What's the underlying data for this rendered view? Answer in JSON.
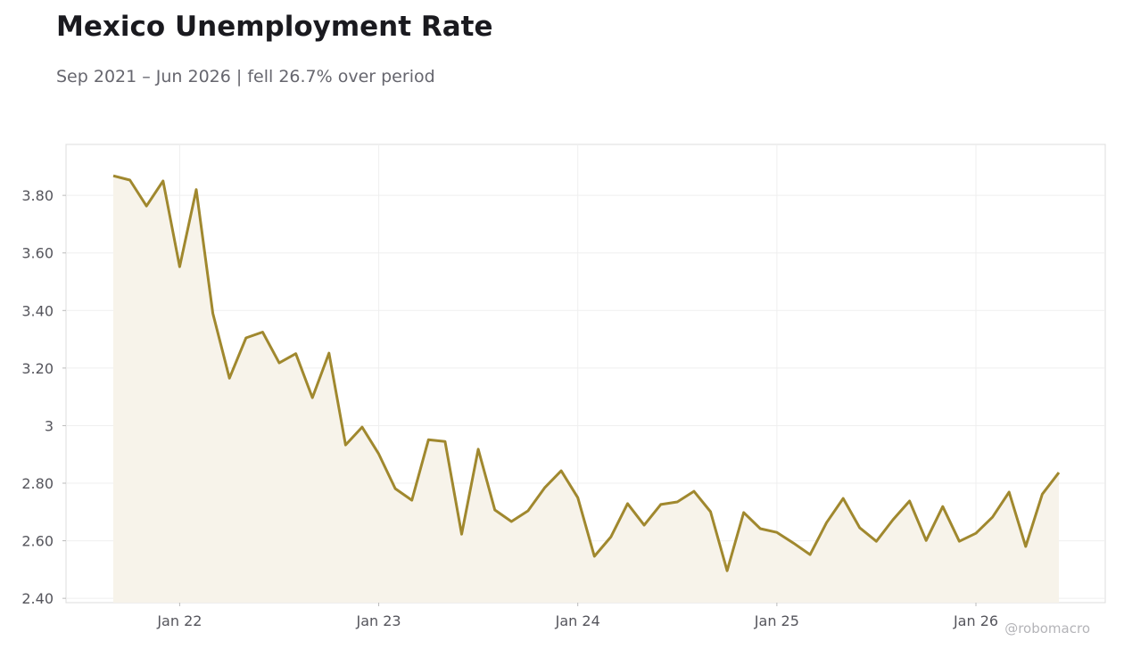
{
  "chart_data": {
    "type": "line",
    "title": "Mexico Unemployment Rate",
    "subtitle": "Sep 2021 – Jun 2026 | fell 26.7% over period",
    "watermark": "@robomacro",
    "x": [
      "2021-09",
      "2021-10",
      "2021-11",
      "2021-12",
      "2022-01",
      "2022-02",
      "2022-03",
      "2022-04",
      "2022-05",
      "2022-06",
      "2022-07",
      "2022-08",
      "2022-09",
      "2022-10",
      "2022-11",
      "2022-12",
      "2023-01",
      "2023-02",
      "2023-03",
      "2023-04",
      "2023-05",
      "2023-06",
      "2023-07",
      "2023-08",
      "2023-09",
      "2023-10",
      "2023-11",
      "2023-12",
      "2024-01",
      "2024-02",
      "2024-03",
      "2024-04",
      "2024-05",
      "2024-06",
      "2024-07",
      "2024-08",
      "2024-09",
      "2024-10",
      "2024-11",
      "2024-12",
      "2025-01",
      "2025-02",
      "2025-03",
      "2025-04",
      "2025-05",
      "2025-06",
      "2025-07",
      "2025-08",
      "2025-09",
      "2025-10",
      "2025-11",
      "2025-12",
      "2026-01",
      "2026-02",
      "2026-03",
      "2026-04",
      "2026-05",
      "2026-06"
    ],
    "series": [
      {
        "name": "Unemployment rate",
        "color": "#a0882e",
        "values": [
          3.868,
          3.853,
          3.763,
          3.85,
          3.552,
          3.82,
          3.39,
          3.165,
          3.305,
          3.325,
          3.218,
          3.25,
          3.097,
          3.252,
          2.933,
          2.995,
          2.902,
          2.781,
          2.741,
          2.951,
          2.945,
          2.623,
          2.918,
          2.707,
          2.667,
          2.704,
          2.784,
          2.843,
          2.75,
          2.546,
          2.614,
          2.729,
          2.654,
          2.726,
          2.735,
          2.772,
          2.701,
          2.496,
          2.698,
          2.642,
          2.629,
          2.592,
          2.552,
          2.663,
          2.747,
          2.645,
          2.598,
          2.673,
          2.738,
          2.601,
          2.719,
          2.598,
          2.626,
          2.682,
          2.769,
          2.58,
          2.762,
          2.837
        ]
      }
    ],
    "fill_color": "#f7f3ea",
    "xticks": [
      {
        "value": "2022-01",
        "label": "Jan 22"
      },
      {
        "value": "2023-01",
        "label": "Jan 23"
      },
      {
        "value": "2024-01",
        "label": "Jan 24"
      },
      {
        "value": "2025-01",
        "label": "Jan 25"
      },
      {
        "value": "2026-01",
        "label": "Jan 26"
      }
    ],
    "ylim": [
      2.385,
      3.977
    ],
    "yticks": [
      {
        "value": 2.4,
        "label": "2.40"
      },
      {
        "value": 2.6,
        "label": "2.60"
      },
      {
        "value": 2.8,
        "label": "2.80"
      },
      3,
      {
        "value": 3.2,
        "label": "3.20"
      },
      {
        "value": 3.4,
        "label": "3.40"
      },
      {
        "value": 3.6,
        "label": "3.60"
      },
      {
        "value": 3.8,
        "label": "3.80"
      }
    ],
    "grid": true
  }
}
